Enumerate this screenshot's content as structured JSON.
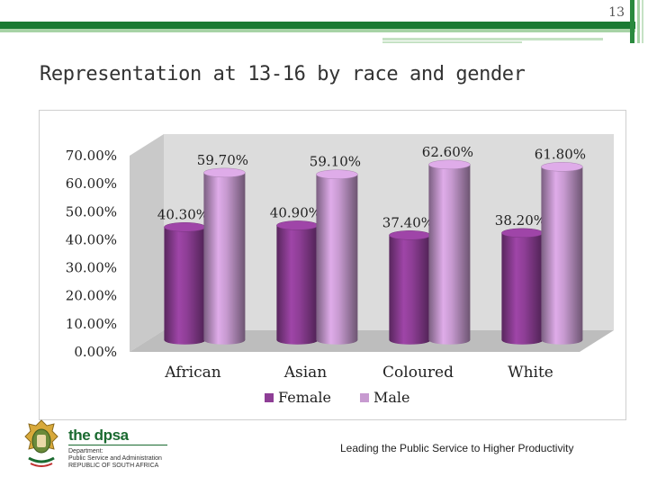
{
  "page": {
    "number": "13"
  },
  "slide": {
    "title": "Representation at 13-16 by race and gender"
  },
  "footer": {
    "tagline": "Leading the Public Service to Higher Productivity",
    "logo": {
      "name": "the dpsa",
      "line1": "Department:",
      "line2": "Public Service and Administration",
      "line3": "REPUBLIC OF SOUTH AFRICA"
    }
  },
  "colors": {
    "accent_dark_green": "#1a7a32",
    "accent_light_green": "#a7d3a6",
    "female": "#8e3e96",
    "male": "#c79ad0"
  },
  "chart_data": {
    "type": "bar",
    "title": "",
    "xlabel": "",
    "ylabel": "",
    "categories": [
      "African",
      "Asian",
      "Coloured",
      "White"
    ],
    "series": [
      {
        "name": "Female",
        "values": [
          40.3,
          40.9,
          37.4,
          38.2
        ],
        "labels": [
          "40.30%",
          "40.90%",
          "37.40%",
          "38.20%"
        ],
        "color": "#8e3e96"
      },
      {
        "name": "Male",
        "values": [
          59.7,
          59.1,
          62.6,
          61.8
        ],
        "labels": [
          "59.70%",
          "59.10%",
          "62.60%",
          "61.80%"
        ],
        "color": "#c79ad0"
      }
    ],
    "ylim": [
      0,
      70
    ],
    "yticks": [
      0,
      10,
      20,
      30,
      40,
      50,
      60,
      70
    ],
    "ytick_labels": [
      "0.00%",
      "10.00%",
      "20.00%",
      "30.00%",
      "40.00%",
      "50.00%",
      "60.00%",
      "70.00%"
    ],
    "legend_position": "bottom",
    "style": "3d-cylinder",
    "grid": false
  }
}
